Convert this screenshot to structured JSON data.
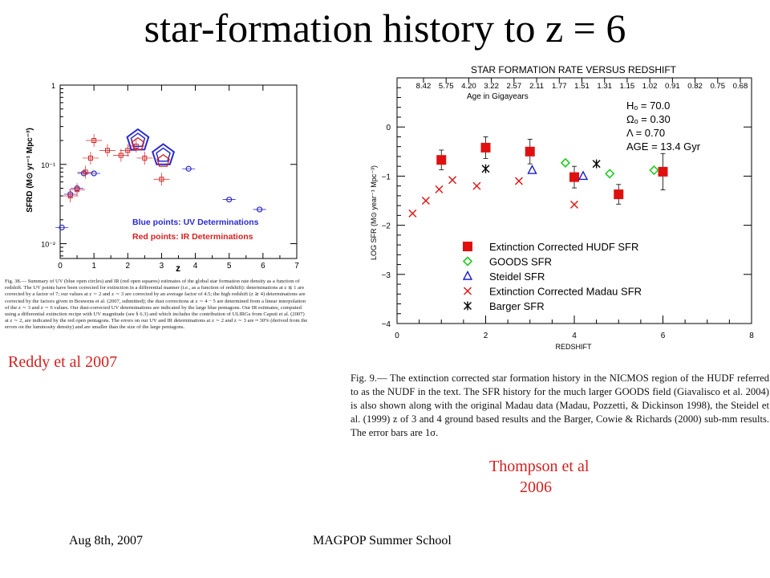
{
  "slide": {
    "title": "star-formation history to z = 6",
    "credit_left": "Reddy et al 2007",
    "credit_right_line1": "Thompson et al",
    "credit_right_line2": "2006",
    "footer_left": "Aug 8th, 2007",
    "footer_center": "MAGPOP Summer School"
  },
  "left_caption": "Fig. 38.— Summary of UV (blue open circles) and IR (red open squares) estimates of the global star formation rate density as a function of redshift. The UV points have been corrected for extinction in a differential manner (i.e., as a function of redshift): determinations at z ≲ 1 are corrected by a factor of 7; our values at z ∼ 2 and z ∼ 3 are corrected by an average factor of 4.5; the high redshift (z ≳ 4) determinations are corrected by the factors given in Bouwens et al. (2007, submitted); the dust corrections at z ∼ 4 − 5 are determined from a linear interpolation of the z ∼ 3 and z ∼ 6 values. Our dust-corrected UV determinations are indicated by the large blue pentagons. Our IR estimates, computed using a differential extinction recipe with UV magnitude (see § 6.3) and which includes the contribution of ULIRGs from Caputi et al. (2007) at z ∼ 2, are indicated by the red open pentagons. The errors on our UV and IR determinations at z ∼ 2 and z ∼ 3 are ≈ 30% (derived from the errors on the luminosity density) and are smaller than the size of the large pentagons.",
  "right_caption": "Fig. 9.— The extinction corrected star formation history in the NICMOS region of the HUDF referred to as the NUDF in the text. The SFR history for the much larger GOODS field (Giavalisco et al. 2004) is also shown along with the original Madau data (Madau, Pozzetti, & Dickinson 1998), the Steidel et al. (1999) z of 3 and 4 ground based results and the Barger, Cowie & Richards (2000) sub-mm results. The error bars are 1σ.",
  "chart_data": [
    {
      "type": "scatter",
      "title": "",
      "xlabel": "z",
      "ylabel": "SFRD (M⊙ yr⁻¹ Mpc⁻³)",
      "xlim": [
        0,
        7
      ],
      "ylim": [
        0.0065,
        1
      ],
      "yscale": "log",
      "x_ticks": [
        "0",
        "1",
        "2",
        "3",
        "4",
        "5",
        "6",
        "7"
      ],
      "y_ticks": [
        {
          "label": "1",
          "value": 1
        },
        {
          "label": "10⁻¹",
          "value": 0.1
        },
        {
          "label": "10⁻²",
          "value": 0.01
        }
      ],
      "legend": {
        "placement": "bottom-right",
        "entries": [
          {
            "text": "Blue points: UV Determinations",
            "color": "#2a2ad0"
          },
          {
            "text": "Red points: IR Determinations",
            "color": "#d42020"
          }
        ]
      },
      "colors": {
        "uv": "#2a2ad0",
        "ir": "#d42020"
      },
      "series": [
        {
          "marker": "circle",
          "color": "#2a2ad0",
          "points": [
            [
              0.05,
              0.016
            ],
            [
              0.3,
              0.042
            ],
            [
              0.5,
              0.05
            ],
            [
              0.7,
              0.077
            ],
            [
              1.0,
              0.077
            ],
            [
              3.8,
              0.088
            ],
            [
              5.0,
              0.036
            ],
            [
              5.9,
              0.027
            ]
          ]
        },
        {
          "marker": "square",
          "color": "#d42020",
          "points": [
            [
              0.3,
              0.04
            ],
            [
              0.5,
              0.048
            ],
            [
              0.75,
              0.08
            ],
            [
              0.9,
              0.12
            ],
            [
              1.0,
              0.2
            ],
            [
              1.4,
              0.15
            ],
            [
              1.8,
              0.13
            ],
            [
              2.0,
              0.15
            ],
            [
              2.25,
              0.17
            ],
            [
              2.5,
              0.12
            ],
            [
              3.0,
              0.065
            ]
          ]
        },
        {
          "marker": "pentagon-large",
          "color": "#2a2ad0",
          "points": [
            [
              2.3,
              0.2
            ],
            [
              3.05,
              0.13
            ]
          ]
        },
        {
          "marker": "pentagon",
          "color": "#d42020",
          "points": [
            [
              2.3,
              0.18
            ],
            [
              3.05,
              0.11
            ]
          ]
        }
      ]
    },
    {
      "type": "scatter",
      "title": "STAR FORMATION RATE VERSUS REDSHIFT",
      "subtitle": "Age in Gigayears",
      "xlabel": "REDSHIFT",
      "ylabel": "LOG SFR (M⊙ year⁻¹ Mpc⁻³)",
      "xlim": [
        0,
        8
      ],
      "ylim": [
        -4,
        1
      ],
      "x_ticks": [
        "0",
        "2",
        "4",
        "6",
        "8"
      ],
      "y_ticks": [
        "0",
        "−1",
        "−2",
        "−3",
        "−4"
      ],
      "age_labels": [
        "8.42",
        "5.75",
        "4.20",
        "3.22",
        "2.57",
        "2.11",
        "1.77",
        "1.51",
        "1.31",
        "1.15",
        "1.02",
        "0.91",
        "0.82",
        "0.75",
        "0.68"
      ],
      "cosmology": [
        "Hₒ = 70.0",
        "Ωₒ = 0.30",
        "Λ = 0.70",
        "AGE = 13.4 Gyr"
      ],
      "legend": {
        "placement": "bottom-right",
        "entries": [
          "Extinction Corrected HUDF SFR",
          "GOODS SFR",
          "Steidel SFR",
          "Extinction Corrected Madau SFR",
          "Barger SFR"
        ]
      },
      "series": [
        {
          "name": "Extinction Corrected HUDF SFR",
          "marker": "filled-square",
          "color": "#e01010",
          "points": [
            [
              1.0,
              -0.67
            ],
            [
              2.0,
              -0.42
            ],
            [
              3.0,
              -0.5
            ],
            [
              4.0,
              -1.02
            ],
            [
              5.0,
              -1.37
            ],
            [
              6.0,
              -0.91
            ]
          ],
          "errors": [
            0.2,
            0.22,
            0.25,
            0.22,
            0.2,
            0.37
          ]
        },
        {
          "name": "GOODS SFR",
          "marker": "diamond",
          "color": "#22cc22",
          "points": [
            [
              3.8,
              -0.73
            ],
            [
              4.8,
              -0.95
            ],
            [
              5.8,
              -0.88
            ]
          ]
        },
        {
          "name": "Steidel SFR",
          "marker": "triangle",
          "color": "#1a1acc",
          "points": [
            [
              3.05,
              -0.88
            ],
            [
              4.2,
              -1.0
            ]
          ]
        },
        {
          "name": "Extinction Corrected Madau SFR",
          "marker": "x",
          "color": "#e01010",
          "points": [
            [
              0.35,
              -1.76
            ],
            [
              0.65,
              -1.5
            ],
            [
              0.95,
              -1.27
            ],
            [
              1.25,
              -1.08
            ],
            [
              1.8,
              -1.2
            ],
            [
              2.75,
              -1.1
            ],
            [
              4.0,
              -1.58
            ]
          ]
        },
        {
          "name": "Barger SFR",
          "marker": "asterisk",
          "color": "#000000",
          "points": [
            [
              2.0,
              -0.85
            ],
            [
              4.5,
              -0.75
            ]
          ]
        }
      ]
    }
  ]
}
